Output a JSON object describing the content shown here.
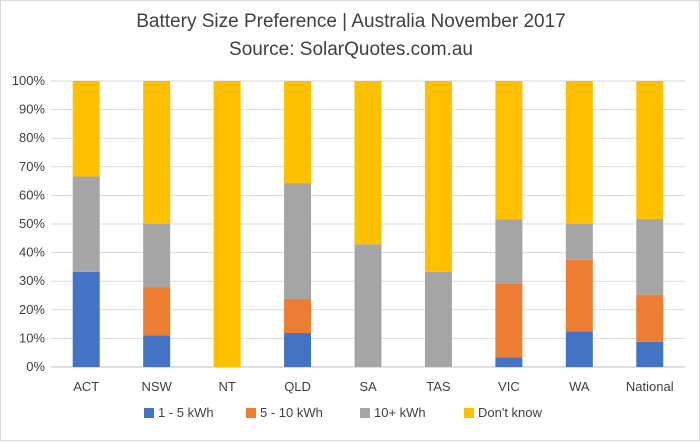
{
  "chart_data": {
    "type": "bar",
    "stacked": true,
    "percent": true,
    "title": "Battery Size Preference  | Australia November 2017",
    "subtitle": "Source: SolarQuotes.com.au",
    "categories": [
      "ACT",
      "NSW",
      "NT",
      "QLD",
      "SA",
      "TAS",
      "VIC",
      "WA",
      "National"
    ],
    "yticks": [
      "0%",
      "10%",
      "20%",
      "30%",
      "40%",
      "50%",
      "60%",
      "70%",
      "80%",
      "90%",
      "100%"
    ],
    "ylim": [
      0,
      100
    ],
    "grid": true,
    "legend_position": "bottom",
    "series": [
      {
        "name": "1 - 5 kWh",
        "color": "#4472C4",
        "values": [
          33.3,
          11.1,
          0,
          11.9,
          0,
          0,
          3.4,
          12.5,
          8.8
        ]
      },
      {
        "name": "5 - 10 kWh",
        "color": "#ED7D31",
        "values": [
          0,
          16.7,
          0,
          11.9,
          0,
          0,
          25.9,
          25.0,
          16.5
        ]
      },
      {
        "name": "10+ kWh",
        "color": "#A5A5A5",
        "values": [
          33.3,
          22.2,
          0,
          40.5,
          42.9,
          33.3,
          22.4,
          12.5,
          26.5
        ]
      },
      {
        "name": "Don't know",
        "color": "#FFC000",
        "values": [
          33.4,
          50.0,
          100,
          35.7,
          57.1,
          66.7,
          48.3,
          50.0,
          48.2
        ]
      }
    ]
  }
}
